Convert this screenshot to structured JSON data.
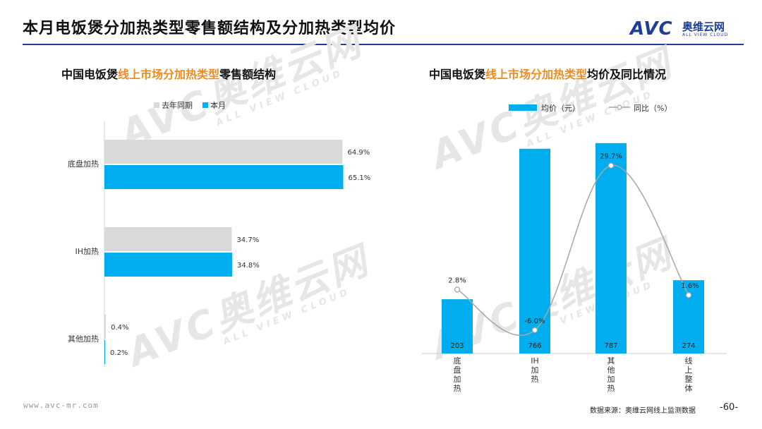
{
  "header": {
    "title": "本月电饭煲分加热类型零售额结构及分加热类型均价"
  },
  "logo": {
    "avc": "AVC",
    "cn": "奥维云网",
    "en": "ALL VIEW CLOUD"
  },
  "watermark": {
    "cn": "奥维云网",
    "en": "ALL VIEW CLOUD"
  },
  "footer": {
    "url": "www.avc-mr.com",
    "source": "数据来源：奥维云网线上监测数据",
    "page": "-60-"
  },
  "colors": {
    "accent": "#00aeef",
    "gray": "#d9d9d9",
    "highlight": "#f08c1e",
    "brand": "#1c3f95",
    "line": "#a6a6a6"
  },
  "left_chart": {
    "title_prefix": "中国电饭煲",
    "title_highlight": "线上市场分加热类型",
    "title_suffix": "零售额结构"
  },
  "right_chart": {
    "title_prefix": "中国电饭煲",
    "title_highlight": "线上市场分加热类型",
    "title_suffix": "均价及同比情况"
  },
  "chart_data": [
    {
      "type": "bar",
      "orientation": "horizontal",
      "categories": [
        "底盘加热",
        "IH加热",
        "其他加热"
      ],
      "series": [
        {
          "name": "去年同期",
          "values": [
            64.9,
            34.7,
            0.4
          ],
          "labels": [
            "64.9%",
            "34.7%",
            "0.4%"
          ],
          "color": "#d9d9d9"
        },
        {
          "name": "本月",
          "values": [
            65.1,
            34.8,
            0.2
          ],
          "labels": [
            "65.1%",
            "34.8%",
            "0.2%"
          ],
          "color": "#00aeef"
        }
      ],
      "xlim": [
        0,
        100
      ],
      "legend": "top"
    },
    {
      "type": "bar",
      "categories": [
        "底盘加热",
        "IH加热",
        "其他加热",
        "线上整体"
      ],
      "category_labels": [
        "底\n盘\n加\n热",
        "IH\n加\n热",
        "其\n他\n加\n热",
        "线\n上\n整\n体"
      ],
      "series": [
        {
          "name": "均价（元）",
          "type": "bar",
          "values": [
            203,
            766,
            787,
            274
          ],
          "labels": [
            "203",
            "766",
            "787",
            "274"
          ],
          "color": "#00aeef"
        },
        {
          "name": "同比（%）",
          "type": "line",
          "values": [
            2.8,
            -6.0,
            29.7,
            1.6
          ],
          "labels": [
            "2.8%",
            "-6.0%",
            "29.7%",
            "1.6%"
          ],
          "color": "#a6a6a6"
        }
      ],
      "ylim_bar": [
        0,
        900
      ],
      "ylim_line": [
        -10,
        35
      ],
      "legend": "top"
    }
  ]
}
